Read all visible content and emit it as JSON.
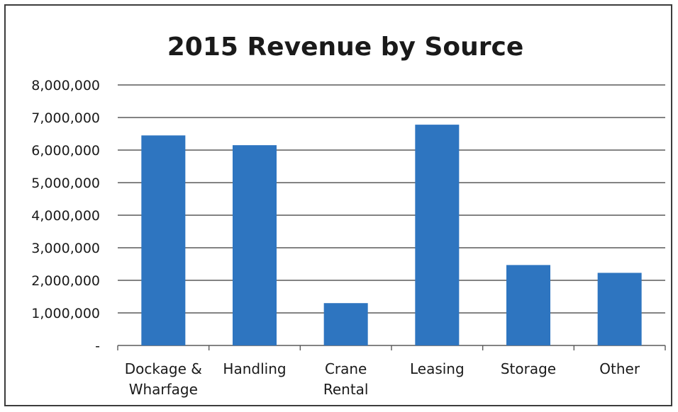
{
  "chart_data": {
    "type": "bar",
    "title": "2015 Revenue by Source",
    "xlabel": "",
    "ylabel": "",
    "categories": [
      [
        "Dockage &",
        "Wharfage"
      ],
      [
        "Handling"
      ],
      [
        "Crane",
        "Rental"
      ],
      [
        "Leasing"
      ],
      [
        "Storage"
      ],
      [
        "Other"
      ]
    ],
    "values": [
      6450000,
      6150000,
      1300000,
      6780000,
      2470000,
      2230000
    ],
    "ylim": [
      0,
      8000000
    ],
    "yticks": [
      0,
      1000000,
      2000000,
      3000000,
      4000000,
      5000000,
      6000000,
      7000000,
      8000000
    ],
    "ytick_labels": [
      "-",
      "1,000,000",
      "2,000,000",
      "3,000,000",
      "4,000,000",
      "5,000,000",
      "6,000,000",
      "7,000,000",
      "8,000,000"
    ],
    "grid": true,
    "legend": "none",
    "bar_color": "#2e75c0"
  }
}
